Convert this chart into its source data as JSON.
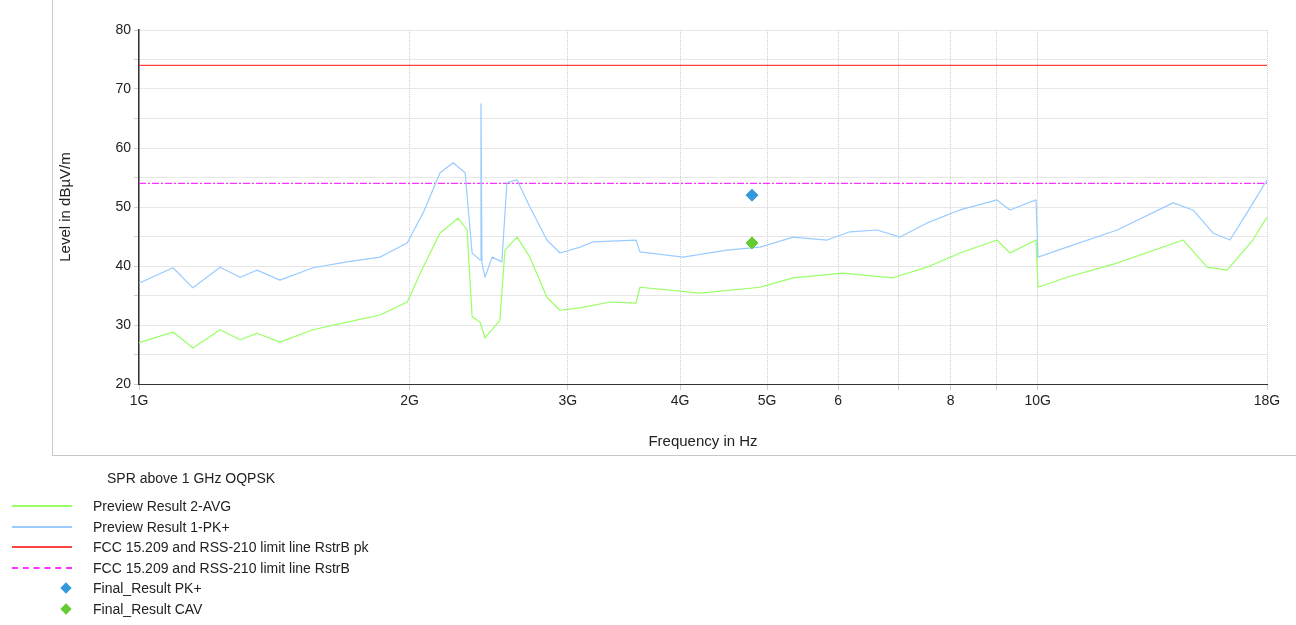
{
  "chart_data": {
    "type": "line",
    "xlabel": "Frequency in Hz",
    "ylabel": "Level in dBµV/m",
    "legend_title": "SPR above 1 GHz  OQPSK",
    "log": "x",
    "grid": true,
    "legend": "bottom left",
    "xlim": [
      1,
      18
    ],
    "xticks": [
      {
        "value": 1,
        "label": "1G"
      },
      {
        "value": 2,
        "label": "2G"
      },
      {
        "value": 3,
        "label": "3G"
      },
      {
        "value": 4,
        "label": "4G"
      },
      {
        "value": 5,
        "label": "5G"
      },
      6,
      {
        "value": 7,
        "label": null
      },
      8,
      {
        "value": 9,
        "label": null
      },
      {
        "value": 10,
        "label": "10G"
      },
      {
        "value": 18,
        "label": "18G"
      }
    ],
    "ylim": [
      20,
      80
    ],
    "yticks": [
      20,
      {
        "value": 25,
        "label": null
      },
      30,
      {
        "value": 35,
        "label": null
      },
      40,
      {
        "value": 45,
        "label": null
      },
      50,
      {
        "value": 55,
        "label": null
      },
      60,
      {
        "value": 65,
        "label": null
      },
      70,
      {
        "value": 75,
        "label": null
      },
      80
    ],
    "series": [
      {
        "name": "Preview Result 2-AVG",
        "color": "#99ff66",
        "line_style": "solid",
        "marker": "none",
        "x": [
          1,
          1.091,
          1.148,
          1.231,
          1.296,
          1.353,
          1.435,
          1.562,
          1.704,
          1.854,
          1.988,
          2.071,
          2.163,
          2.265,
          2.318,
          2.348,
          2.396,
          2.427,
          2.521,
          2.554,
          2.634,
          2.723,
          2.844,
          2.941,
          3.096,
          3.344,
          3.573,
          3.61,
          4.211,
          4.911,
          5.344,
          6.073,
          6.903,
          7.533,
          8.197,
          9.012,
          9.316,
          9.959,
          10.01,
          10.78,
          12.26,
          14.52,
          15.44,
          16.25,
          17.36,
          18
        ],
        "values": [
          27.0,
          28.8,
          26.1,
          29.2,
          27.5,
          28.6,
          27.1,
          29.2,
          30.5,
          31.7,
          33.9,
          39.8,
          45.6,
          48.1,
          46.1,
          31.4,
          30.5,
          27.8,
          30.8,
          42.7,
          44.9,
          41.5,
          34.7,
          32.5,
          32.9,
          33.9,
          33.7,
          36.4,
          35.4,
          36.4,
          38.0,
          38.8,
          38.0,
          39.8,
          42.2,
          44.4,
          42.2,
          44.4,
          36.4,
          38.1,
          40.5,
          44.4,
          39.8,
          39.3,
          44.4,
          48.3
        ]
      },
      {
        "name": "Preview Result 1-PK+",
        "color": "#99ccff",
        "line_style": "solid",
        "marker": "none",
        "x": [
          1,
          1.091,
          1.148,
          1.231,
          1.296,
          1.353,
          1.435,
          1.562,
          1.704,
          1.854,
          1.988,
          2.071,
          2.163,
          2.236,
          2.306,
          2.348,
          2.396,
          2.402,
          2.408,
          2.427,
          2.471,
          2.534,
          2.567,
          2.634,
          2.723,
          2.844,
          2.941,
          3.096,
          3.202,
          3.573,
          3.61,
          4.031,
          4.512,
          4.911,
          5.344,
          5.831,
          6.183,
          6.626,
          7.03,
          7.533,
          8.197,
          9.012,
          9.316,
          9.959,
          10.01,
          10.78,
          12.26,
          14.15,
          14.89,
          15.67,
          16.37,
          17.1,
          18
        ],
        "values": [
          37.1,
          39.7,
          36.3,
          39.8,
          38.1,
          39.3,
          37.6,
          39.7,
          40.7,
          41.5,
          43.9,
          49.0,
          55.8,
          57.5,
          55.8,
          42.2,
          41.0,
          67.5,
          40.5,
          38.1,
          41.5,
          40.7,
          54.1,
          54.6,
          50.0,
          44.4,
          42.2,
          43.2,
          44.1,
          44.4,
          42.4,
          41.5,
          42.7,
          43.2,
          44.9,
          44.4,
          45.8,
          46.1,
          44.9,
          47.3,
          49.5,
          51.2,
          49.5,
          51.2,
          41.5,
          43.2,
          46.1,
          50.7,
          49.5,
          45.6,
          44.4,
          49.0,
          54.6
        ]
      },
      {
        "name": "FCC 15.209 and RSS-210 limit line RstrB pk",
        "color": "#ff4444",
        "line_style": "solid",
        "marker": "none",
        "x": [
          1,
          18
        ],
        "values": [
          74,
          74
        ]
      },
      {
        "name": "FCC 15.209 and RSS-210 limit line RstrB",
        "color": "#ff33ff",
        "line_style": "dashed",
        "marker": "none",
        "x": [
          1,
          18
        ],
        "values": [
          54,
          54
        ]
      },
      {
        "name": "Final_Result PK+",
        "type": "scatter",
        "color": "#3399dd",
        "marker": "diamond",
        "x": [
          4.81
        ],
        "values": [
          52.0
        ]
      },
      {
        "name": "Final_Result CAV",
        "type": "scatter",
        "color": "#66cc33",
        "marker": "diamond",
        "x": [
          4.81
        ],
        "values": [
          43.9
        ]
      }
    ]
  }
}
